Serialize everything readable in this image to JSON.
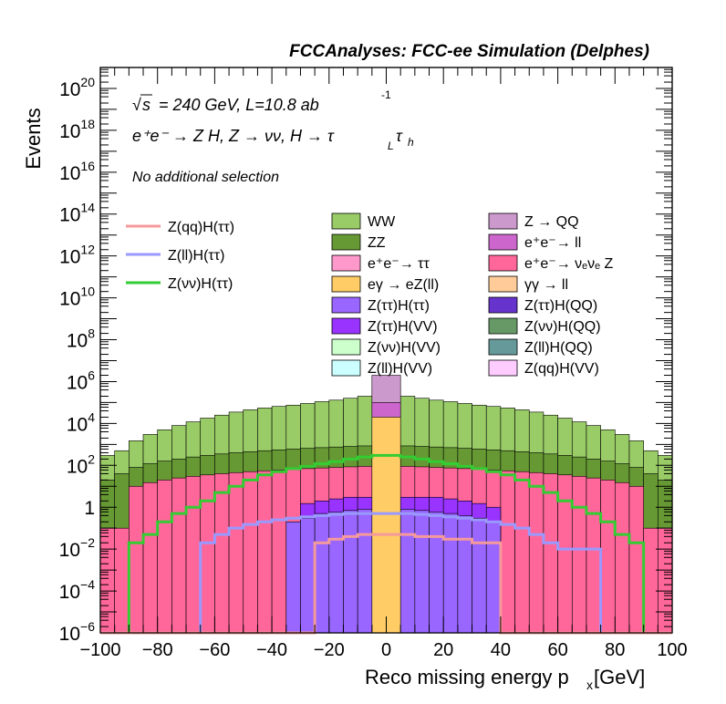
{
  "header": "FCCAnalyses: FCC-ee Simulation (Delphes)",
  "annotations": {
    "energy": "= 240 GeV, L=10.8 ab",
    "energy_sup": "-1",
    "sqrt_s": "s",
    "process": "e⁺e⁻ → Z H, Z → νν, H → τ",
    "process_sub_L": "L",
    "process_tau": "τ",
    "process_sub_h": "h",
    "selection": "No additional selection"
  },
  "axes": {
    "ylabel": "Events",
    "xlabel": "Reco missing energy p",
    "xlabel_sub": "x",
    "xlabel_unit": " [GeV]",
    "x_ticks": [
      "−100",
      "−80",
      "−60",
      "−40",
      "−20",
      "0",
      "20",
      "40",
      "60",
      "80",
      "100"
    ],
    "y_ticks": [
      {
        "base": "10",
        "exp": "−6"
      },
      {
        "base": "10",
        "exp": "−4"
      },
      {
        "base": "10",
        "exp": "−2"
      },
      {
        "base": "1",
        "exp": ""
      },
      {
        "base": "10",
        "exp": "2"
      },
      {
        "base": "10",
        "exp": "4"
      },
      {
        "base": "10",
        "exp": "6"
      },
      {
        "base": "10",
        "exp": "8"
      },
      {
        "base": "10",
        "exp": "10"
      },
      {
        "base": "10",
        "exp": "12"
      },
      {
        "base": "10",
        "exp": "14"
      },
      {
        "base": "10",
        "exp": "16"
      },
      {
        "base": "10",
        "exp": "18"
      },
      {
        "base": "10",
        "exp": "20"
      }
    ]
  },
  "legend_signals": [
    {
      "label": "Z(qq)H(ττ)",
      "color": "#f59a9a"
    },
    {
      "label": "Z(ll)H(ττ)",
      "color": "#9999ff"
    },
    {
      "label": "Z(νν)H(ττ)",
      "color": "#33cc33"
    }
  ],
  "legend_backgrounds": [
    {
      "label": "WW",
      "color": "#99cc66"
    },
    {
      "label": "Z → QQ",
      "color": "#cc99cc"
    },
    {
      "label": "ZZ",
      "color": "#669933"
    },
    {
      "label": "e⁺e⁻→ ll",
      "color": "#cc66cc"
    },
    {
      "label": "e⁺e⁻→ ττ",
      "color": "#ff99cc"
    },
    {
      "label": "e⁺e⁻→ νₑνₑ Z",
      "color": "#ff6699"
    },
    {
      "label": "eγ → eZ(ll)",
      "color": "#ffcc66"
    },
    {
      "label": "γγ → ll",
      "color": "#ffcc99"
    },
    {
      "label": "Z(ττ)H(ττ)",
      "color": "#9966ff"
    },
    {
      "label": "Z(ττ)H(QQ)",
      "color": "#6633cc"
    },
    {
      "label": "Z(ττ)H(VV)",
      "color": "#9933ff"
    },
    {
      "label": "Z(νν)H(QQ)",
      "color": "#669966"
    },
    {
      "label": "Z(νν)H(VV)",
      "color": "#ccffcc"
    },
    {
      "label": "Z(ll)H(QQ)",
      "color": "#669999"
    },
    {
      "label": "Z(ll)H(VV)",
      "color": "#ccffff"
    },
    {
      "label": "Z(qq)H(VV)",
      "color": "#ffccff"
    }
  ],
  "chart_data": {
    "type": "area",
    "title": "FCCAnalyses: FCC-ee Simulation (Delphes)",
    "xlabel": "Reco missing energy p_x [GeV]",
    "ylabel": "Events",
    "xlim": [
      -100,
      100
    ],
    "ylim": [
      1e-06,
      1e+21
    ],
    "y_scale": "log",
    "bin_width": 5,
    "x_bin_low_edges": [
      -100,
      -95,
      -90,
      -85,
      -80,
      -75,
      -70,
      -65,
      -60,
      -55,
      -50,
      -45,
      -40,
      -35,
      -30,
      -25,
      -20,
      -15,
      -10,
      -5,
      0,
      5,
      10,
      15,
      20,
      25,
      30,
      35,
      40,
      45,
      50,
      55,
      60,
      65,
      70,
      75,
      80,
      85,
      90,
      95
    ],
    "stack_totals": [
      {
        "name": "WW",
        "values": [
          300,
          500,
          1500,
          3000,
          5000,
          8000,
          12000,
          18000,
          25000,
          35000,
          45000,
          55000,
          65000,
          75000,
          90000,
          110000,
          130000,
          160000,
          200000,
          500000,
          500000,
          200000,
          160000,
          130000,
          110000,
          90000,
          75000,
          65000,
          55000,
          45000,
          35000,
          25000,
          18000,
          12000,
          8000,
          5000,
          3000,
          1500,
          500,
          300
        ]
      },
      {
        "name": "ZZ",
        "values": [
          20,
          40,
          80,
          120,
          160,
          200,
          250,
          300,
          350,
          400,
          450,
          500,
          550,
          600,
          650,
          700,
          750,
          800,
          850,
          900,
          900,
          850,
          800,
          750,
          700,
          650,
          600,
          550,
          500,
          450,
          400,
          350,
          300,
          250,
          200,
          160,
          120,
          80,
          40,
          20
        ]
      },
      {
        "name": "e⁺e⁻→ νₑνₑ Z",
        "values": [
          0.1,
          0.1,
          10,
          15,
          20,
          25,
          30,
          35,
          40,
          45,
          50,
          55,
          60,
          65,
          70,
          75,
          80,
          85,
          90,
          95,
          95,
          90,
          85,
          80,
          75,
          70,
          65,
          60,
          55,
          50,
          45,
          40,
          35,
          30,
          25,
          20,
          15,
          10,
          0.1,
          0.1
        ]
      },
      {
        "name": "Z(ττ)H(VV)",
        "values": [
          0,
          0,
          0,
          0,
          0,
          0,
          0,
          0,
          0,
          0,
          0,
          0,
          0,
          0,
          1.5,
          2,
          2.5,
          3,
          3,
          3,
          3,
          3,
          3,
          3,
          2.5,
          2,
          1.5,
          1,
          0,
          0,
          0,
          0,
          0,
          0,
          0,
          0,
          0,
          0,
          0,
          0
        ]
      },
      {
        "name": "Z(ττ)H(ττ)",
        "values": [
          0,
          0,
          0,
          0,
          0,
          0,
          0,
          0,
          0,
          0,
          0,
          0,
          0,
          0.2,
          0.3,
          0.5,
          0.6,
          0.7,
          0.8,
          0.8,
          0.8,
          0.8,
          0.7,
          0.6,
          0.5,
          0.4,
          0.3,
          0.2,
          0,
          0,
          0,
          0,
          0,
          0,
          0,
          0,
          0,
          0,
          0,
          0
        ]
      }
    ],
    "signals": [
      {
        "name": "Z(νν)H(ττ)",
        "values": [
          1e-06,
          1e-06,
          0.02,
          0.05,
          0.2,
          0.5,
          1,
          2,
          5,
          10,
          20,
          35,
          50,
          70,
          90,
          120,
          150,
          200,
          250,
          300,
          300,
          250,
          200,
          150,
          120,
          90,
          70,
          50,
          35,
          20,
          10,
          5,
          2,
          1,
          0.5,
          0.2,
          0.05,
          0.02,
          1e-06,
          1e-06
        ]
      },
      {
        "name": "Z(ll)H(ττ)",
        "values": [
          0,
          0,
          0,
          0,
          0,
          0,
          0,
          0.02,
          0.05,
          0.1,
          0.15,
          0.2,
          0.25,
          0.3,
          0.35,
          0.4,
          0.45,
          0.5,
          0.5,
          0.5,
          0.5,
          0.5,
          0.45,
          0.4,
          0.35,
          0.3,
          0.25,
          0.2,
          0.15,
          0.1,
          0.05,
          0.02,
          0.01,
          0.01,
          0.01,
          0,
          0,
          0,
          0,
          0
        ]
      },
      {
        "name": "Z(qq)H(ττ)",
        "values": [
          0,
          0,
          0,
          0,
          0,
          0,
          0,
          0,
          0,
          0,
          0,
          0,
          0,
          0,
          0,
          0.02,
          0.03,
          0.04,
          0.05,
          0.05,
          0.05,
          0.05,
          0.04,
          0.04,
          0.03,
          0.03,
          0.02,
          0.02,
          0,
          0,
          0,
          0,
          0,
          0,
          0,
          0,
          0,
          0,
          0,
          0
        ]
      }
    ],
    "central_bins": [
      {
        "name": "Z → QQ",
        "x": [
          -5,
          5
        ],
        "value": 2000000
      },
      {
        "name": "e⁺e⁻→ ll",
        "x": [
          -5,
          5
        ],
        "value": 100000
      },
      {
        "name": "eγ → eZ(ll)",
        "x": [
          -5,
          5
        ],
        "value": 20000
      }
    ]
  }
}
